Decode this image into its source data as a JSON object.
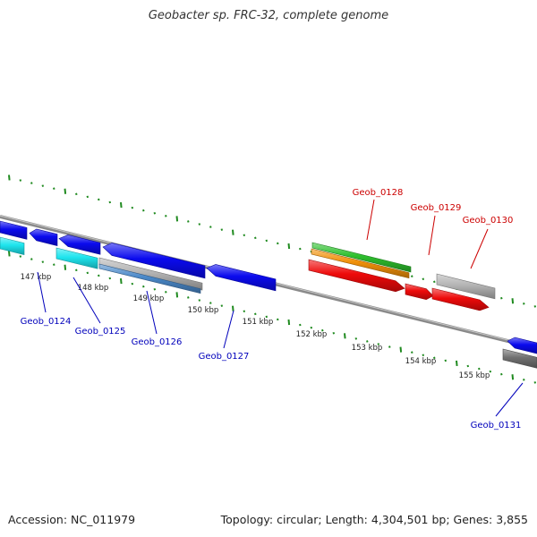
{
  "header": {
    "title": "Geobacter sp. FRC-32, complete genome"
  },
  "footer": {
    "accession": "Accession: NC_011979",
    "summary": "Topology: circular; Length: 4,304,501 bp; Genes: 3,855"
  },
  "colors": {
    "backbone": "#8a8a8a",
    "tick": "#1f8a1f",
    "forward_label": "#cc0000",
    "reverse_label": "#0000bb",
    "blue": "#0a0aee",
    "cyan": "#1ee5ee",
    "gray": "#b4b4b4",
    "steel": "#4a88c8",
    "green": "#2ec02e",
    "orange": "#f0900a",
    "red": "#ee0a0a",
    "dark_gray": "#707070"
  },
  "ticks": [
    {
      "label": "147 kbp"
    },
    {
      "label": "148 kbp"
    },
    {
      "label": "149 kbp"
    },
    {
      "label": "150 kbp"
    },
    {
      "label": "151 kbp"
    },
    {
      "label": "152 kbp"
    },
    {
      "label": "153 kbp"
    },
    {
      "label": "154 kbp"
    },
    {
      "label": "155 kbp"
    }
  ],
  "gene_labels": [
    {
      "name": "Geob_0124",
      "strand": "reverse"
    },
    {
      "name": "Geob_0125",
      "strand": "reverse"
    },
    {
      "name": "Geob_0126",
      "strand": "reverse"
    },
    {
      "name": "Geob_0127",
      "strand": "reverse"
    },
    {
      "name": "Geob_0128",
      "strand": "forward"
    },
    {
      "name": "Geob_0129",
      "strand": "forward"
    },
    {
      "name": "Geob_0130",
      "strand": "forward"
    },
    {
      "name": "Geob_0131",
      "strand": "reverse"
    }
  ]
}
